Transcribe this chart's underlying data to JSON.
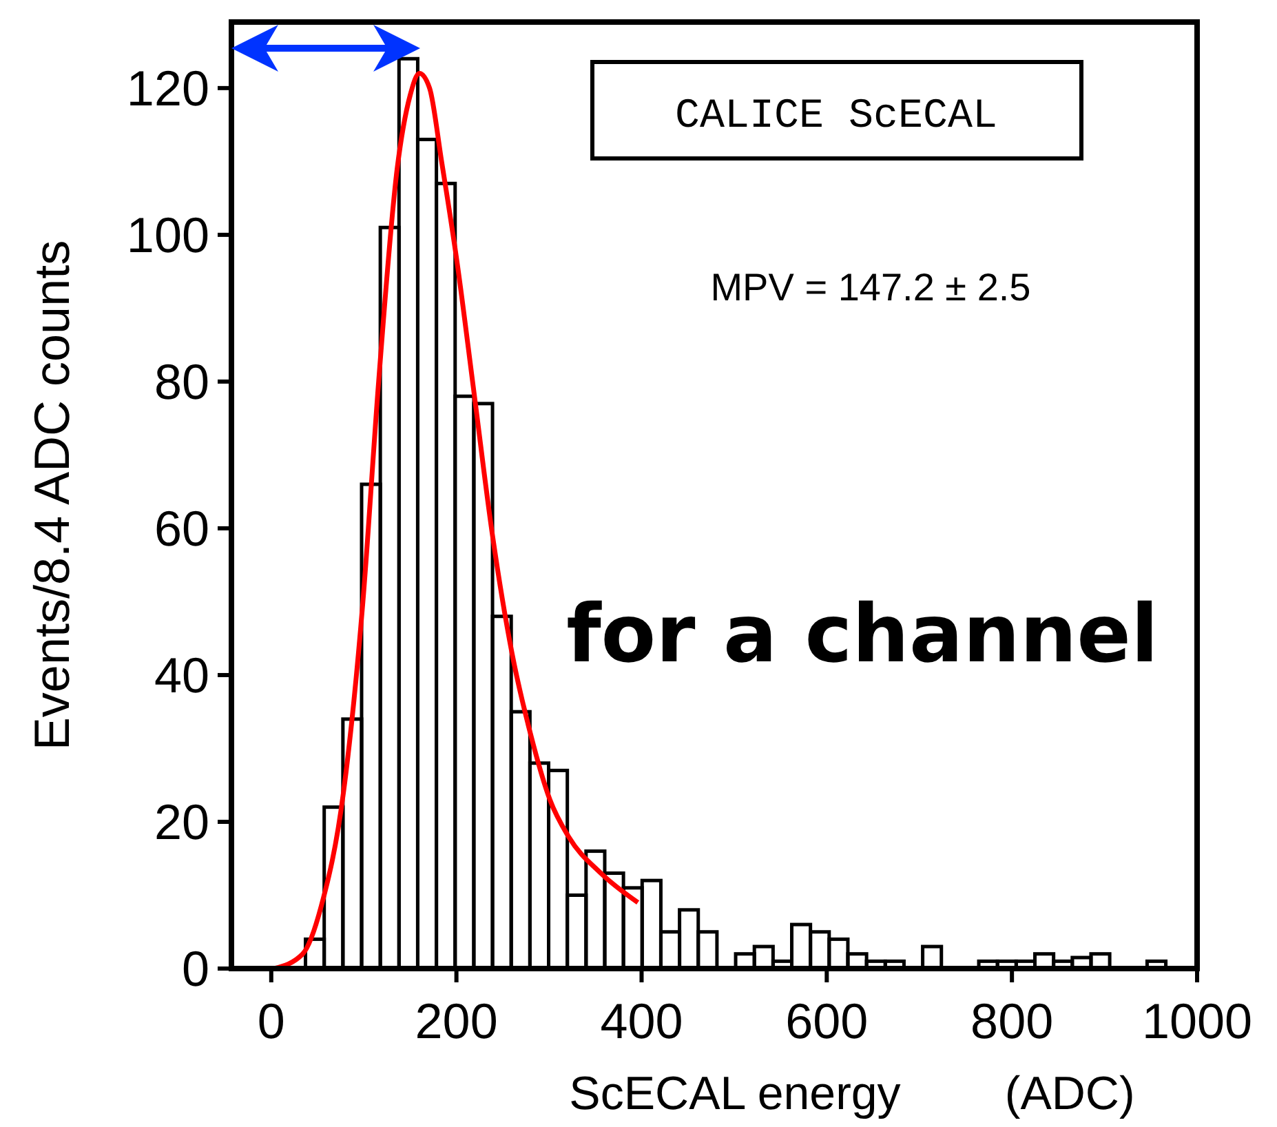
{
  "chart_data": {
    "type": "histogram",
    "xlabel": "ScECAL energy        (ADC)",
    "ylabel": "Events/8.4 ADC counts",
    "annotations": [
      "CALICE ScECAL",
      "MPV = 147.2 ± 2.5",
      "for a channel"
    ],
    "xlim": [
      -43,
      1000
    ],
    "ylim": [
      0,
      129
    ],
    "xticks": [
      0,
      200,
      400,
      600,
      800,
      1000
    ],
    "yticks": [
      0,
      20,
      40,
      60,
      80,
      100,
      120
    ],
    "grid": false,
    "series": [
      {
        "color": "#000000",
        "bins": [
          37,
          57.2,
          77.4,
          97.6,
          117.8,
          138,
          158.2,
          178.4,
          198.6,
          218.8,
          239,
          259.2,
          279.4,
          299.6,
          319.8,
          340,
          360.2,
          380.4,
          400.6,
          420.8,
          441,
          461.2,
          481.4,
          501.6,
          521.8,
          542,
          562.2,
          582.4,
          602.6,
          622.8,
          643,
          663.2,
          683.4,
          703.6,
          723.8,
          744,
          764.2,
          784.4,
          804.6,
          824.8,
          845,
          865.2,
          885.4,
          905.6,
          925.8,
          946,
          966.2,
          986.4
        ],
        "values": [
          4,
          22,
          34,
          66,
          101,
          124,
          113,
          107,
          78,
          77,
          48,
          35,
          28,
          27,
          10,
          16,
          13,
          11,
          12,
          5,
          8,
          5,
          0,
          2,
          3,
          1,
          6,
          5,
          4,
          2,
          1,
          1,
          0,
          3,
          0,
          0,
          1,
          1,
          1,
          2,
          1,
          1.5,
          2,
          0,
          0,
          1,
          0
        ]
      },
      {
        "type": "line",
        "color": "#ff0000",
        "x": [
          3,
          34,
          54,
          78,
          99,
          116,
          136,
          150,
          160,
          171,
          184,
          201,
          219,
          239,
          260,
          280,
          301,
          321,
          356,
          396
        ],
        "values": [
          0,
          2,
          8.5,
          24,
          50,
          80,
          109,
          119,
          122,
          120,
          110,
          96,
          78.5,
          59,
          43,
          32,
          23,
          18,
          13,
          9
        ]
      }
    ]
  }
}
